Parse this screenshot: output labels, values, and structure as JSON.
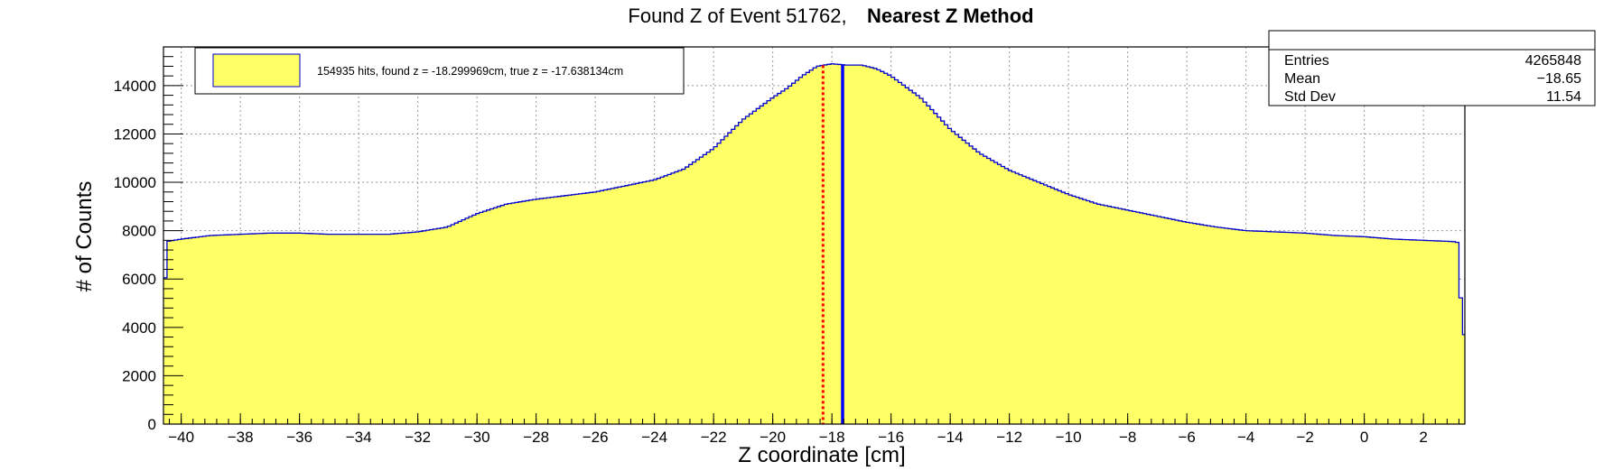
{
  "chart_data": {
    "type": "histogram",
    "title": "Found Z of Event 51762,",
    "title_bold": "Nearest Z Method",
    "xlabel": "Z coordinate [cm]",
    "ylabel": "# of Counts",
    "xlim": [
      -40.6,
      3.4
    ],
    "ylim": [
      0,
      15600
    ],
    "x_ticks": [
      -40,
      -38,
      -36,
      -34,
      -32,
      -30,
      -28,
      -26,
      -24,
      -22,
      -20,
      -18,
      -16,
      -14,
      -12,
      -10,
      -8,
      -6,
      -4,
      -2,
      0,
      2
    ],
    "x_tick_labels": [
      "−40",
      "−38",
      "−36",
      "−34",
      "−32",
      "−30",
      "−28",
      "−26",
      "−24",
      "−22",
      "−20",
      "−18",
      "−16",
      "−14",
      "−12",
      "−10",
      "−8",
      "−6",
      "−4",
      "−2",
      "0",
      "2"
    ],
    "y_ticks": [
      0,
      2000,
      4000,
      6000,
      8000,
      10000,
      12000,
      14000
    ],
    "y_tick_labels": [
      "0",
      "2000",
      "4000",
      "6000",
      "8000",
      "10000",
      "12000",
      "14000"
    ],
    "grid": true,
    "fill_color": "#ffff66",
    "line_color": "#0000cc",
    "curve_x": [
      -40.6,
      -40.5,
      -40.0,
      -39.0,
      -38.0,
      -37.0,
      -36.0,
      -35.0,
      -34.0,
      -33.0,
      -32.0,
      -31.0,
      -30.0,
      -29.0,
      -28.0,
      -27.0,
      -26.0,
      -25.0,
      -24.0,
      -23.0,
      -22.0,
      -21.0,
      -20.0,
      -19.5,
      -19.0,
      -18.5,
      -18.0,
      -17.5,
      -17.0,
      -16.5,
      -16.0,
      -15.0,
      -14.0,
      -13.0,
      -12.0,
      -11.0,
      -10.0,
      -9.0,
      -8.0,
      -7.0,
      -6.0,
      -5.0,
      -4.0,
      -3.0,
      -2.0,
      -1.0,
      0.0,
      1.0,
      2.0,
      3.0,
      3.2,
      3.3
    ],
    "curve_y": [
      3800,
      7550,
      7650,
      7800,
      7850,
      7900,
      7900,
      7850,
      7850,
      7850,
      7950,
      8150,
      8700,
      9100,
      9300,
      9450,
      9600,
      9850,
      10100,
      10550,
      11400,
      12600,
      13500,
      13900,
      14400,
      14800,
      14900,
      14850,
      14850,
      14700,
      14400,
      13500,
      12200,
      11200,
      10500,
      10000,
      9500,
      9100,
      8850,
      8600,
      8350,
      8150,
      8000,
      7950,
      7900,
      7800,
      7750,
      7650,
      7600,
      7550,
      7500,
      3700
    ],
    "annotations": {
      "found_z_line": {
        "x": -18.299969,
        "color": "#ff0000",
        "style": "dotted"
      },
      "true_z_line": {
        "x": -17.638134,
        "color": "#0000ff",
        "style": "solid"
      }
    },
    "legend": {
      "placement": "top-left",
      "label": "154935 hits, found z = -18.299969cm, true z = -17.638134cm"
    },
    "stats_box": {
      "placement": "top-right",
      "rows": [
        {
          "label": "Entries",
          "value": "4265848"
        },
        {
          "label": "Mean",
          "value": "−18.65"
        },
        {
          "label": "Std Dev",
          "value": "11.54"
        }
      ]
    }
  }
}
